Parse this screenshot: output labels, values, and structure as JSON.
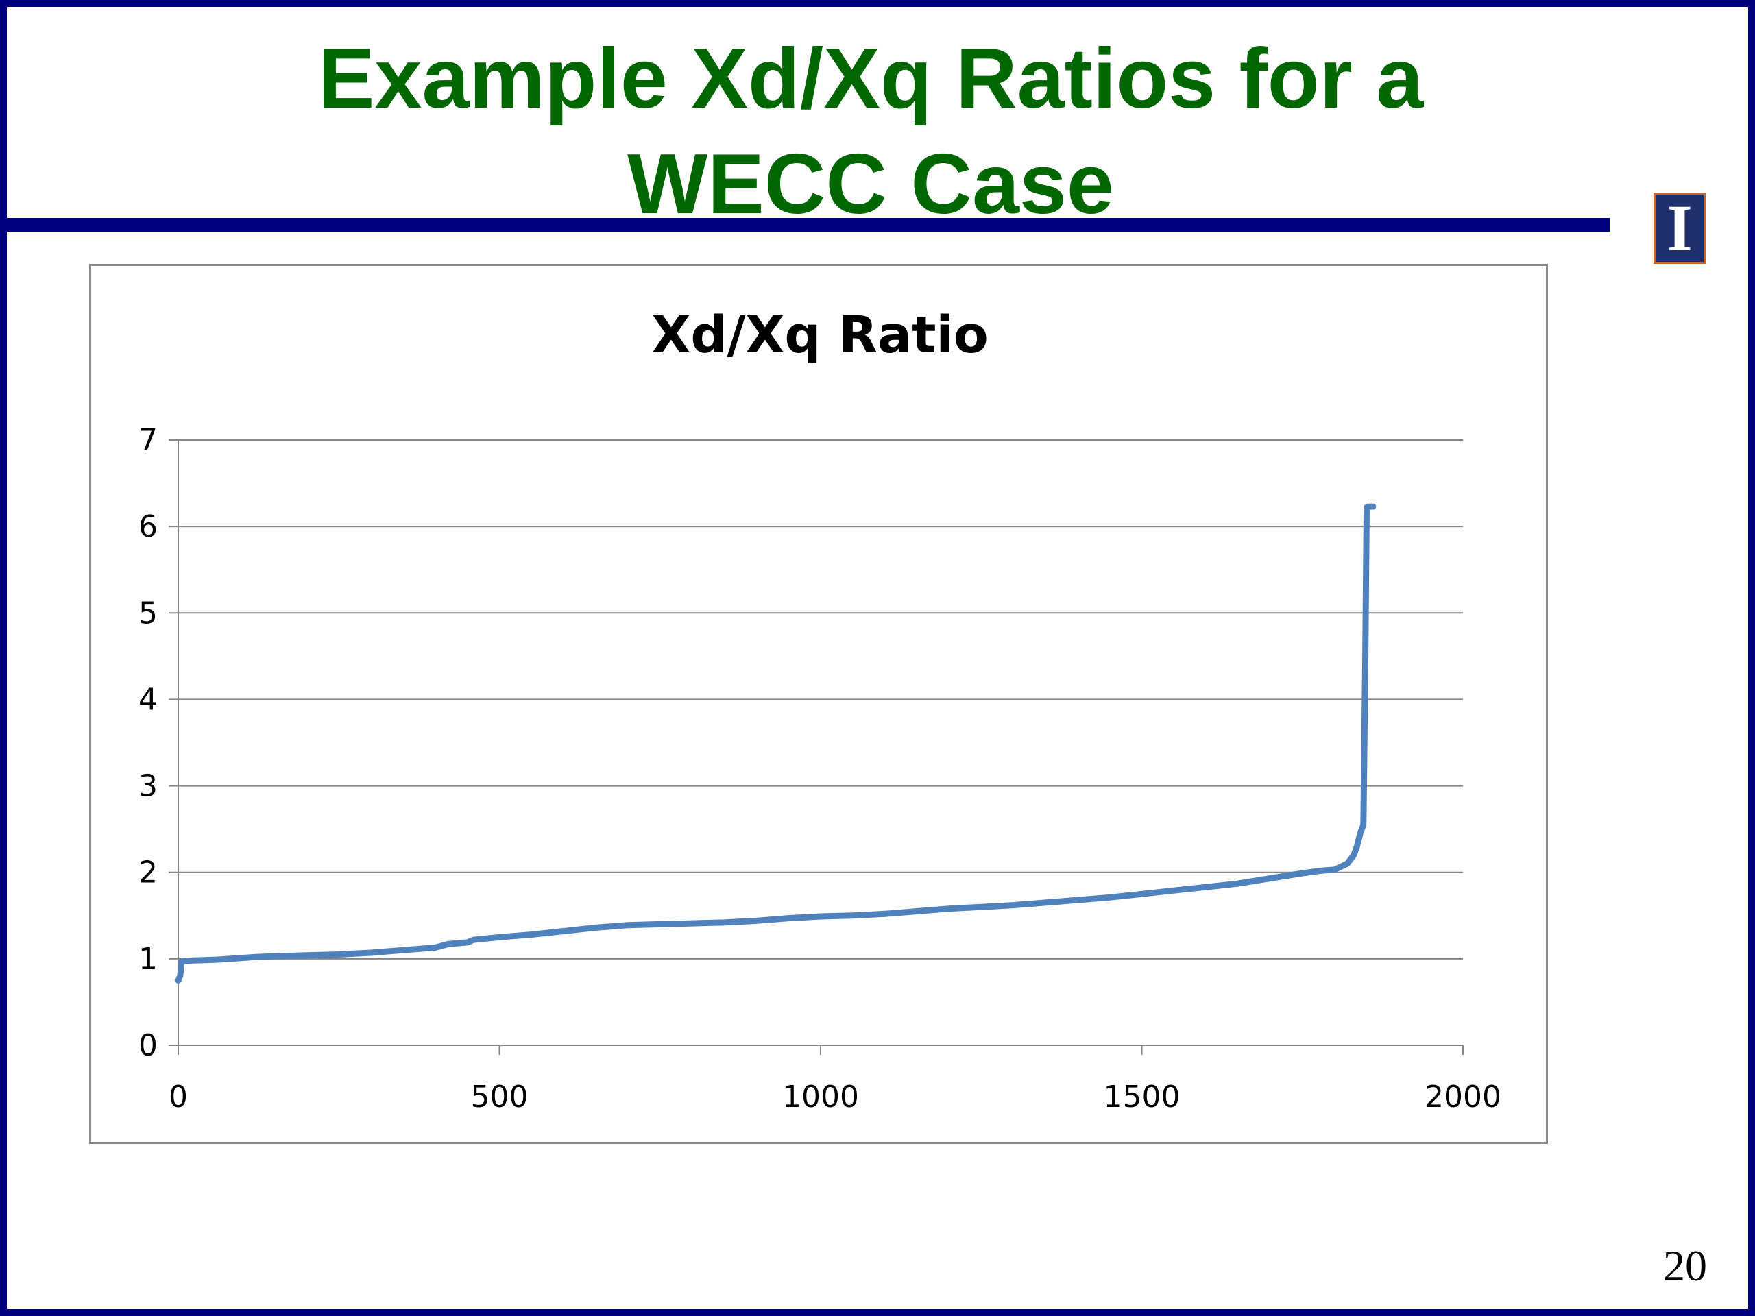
{
  "slide": {
    "title_line1": "Example Xd/Xq Ratios for a",
    "title_line2": "WECC Case",
    "page_number": "20",
    "logo_glyph": "I",
    "logo_icon": "university-block-i-icon"
  },
  "colors": {
    "title": "#006600",
    "rule": "#00007f",
    "series": "#4f81bd",
    "grid": "#868686"
  },
  "chart_data": {
    "type": "line",
    "title": "Xd/Xq Ratio",
    "xlabel": "",
    "ylabel": "",
    "xlim": [
      0,
      2000
    ],
    "ylim": [
      0,
      7
    ],
    "xticks": [
      0,
      500,
      1000,
      1500,
      2000
    ],
    "yticks": [
      0,
      1,
      2,
      3,
      4,
      5,
      6,
      7
    ],
    "grid": true,
    "legend": "none",
    "series": [
      {
        "x": [
          0,
          3,
          5,
          20,
          60,
          80,
          120,
          150,
          200,
          250,
          300,
          350,
          400,
          420,
          450,
          460,
          500,
          550,
          600,
          650,
          700,
          750,
          800,
          850,
          900,
          950,
          1000,
          1050,
          1100,
          1150,
          1200,
          1250,
          1300,
          1350,
          1400,
          1450,
          1500,
          1550,
          1600,
          1650,
          1700,
          1750,
          1780,
          1800,
          1820,
          1830,
          1835,
          1840,
          1845,
          1848,
          1850,
          1853,
          1860
        ],
        "y": [
          0.75,
          0.8,
          0.97,
          0.98,
          0.99,
          1.0,
          1.02,
          1.03,
          1.04,
          1.05,
          1.07,
          1.1,
          1.13,
          1.17,
          1.19,
          1.22,
          1.25,
          1.28,
          1.32,
          1.36,
          1.39,
          1.4,
          1.41,
          1.42,
          1.44,
          1.47,
          1.49,
          1.5,
          1.52,
          1.55,
          1.58,
          1.6,
          1.62,
          1.65,
          1.68,
          1.71,
          1.75,
          1.79,
          1.83,
          1.87,
          1.93,
          1.99,
          2.02,
          2.03,
          2.1,
          2.2,
          2.3,
          2.45,
          2.55,
          4.5,
          6.22,
          6.23,
          6.23
        ]
      }
    ]
  }
}
